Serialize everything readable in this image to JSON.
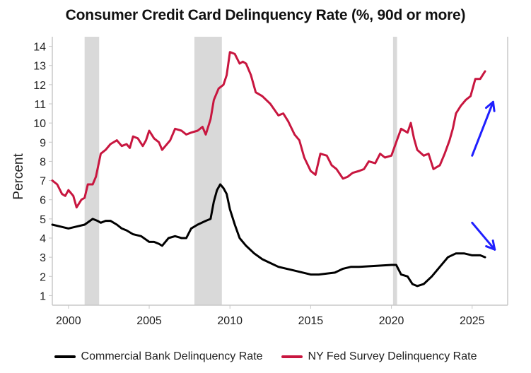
{
  "colors": {
    "commercial": "#000000",
    "nyfed": "#c8163f",
    "recession": "#d9d9d9",
    "arrow": "#1f1fff",
    "axis": "#c8c8c8"
  },
  "chart_data": {
    "type": "line",
    "title": "Consumer Credit Card Delinquency Rate (%, 90d or more)",
    "ylabel": "Percent",
    "xlabel": "",
    "xlim": [
      1999.0,
      2027.2
    ],
    "ylim": [
      0.5,
      14.5
    ],
    "x_ticks": [
      2000,
      2005,
      2010,
      2015,
      2020,
      2025
    ],
    "y_ticks": [
      1,
      2,
      3,
      4,
      5,
      6,
      7,
      8,
      9,
      10,
      11,
      12,
      13,
      14
    ],
    "grid": false,
    "legend_position": "bottom",
    "recessions": [
      [
        2001.0,
        2001.9
      ],
      [
        2007.8,
        2009.5
      ],
      [
        2020.1,
        2020.35
      ]
    ],
    "series": [
      {
        "name": "Commercial Bank Delinquency Rate",
        "color_key": "commercial",
        "x": [
          1999.0,
          1999.5,
          2000.0,
          2000.5,
          2001.0,
          2001.5,
          2001.8,
          2002.0,
          2002.3,
          2002.6,
          2003.0,
          2003.3,
          2003.6,
          2004.0,
          2004.5,
          2005.0,
          2005.3,
          2005.6,
          2005.8,
          2006.2,
          2006.6,
          2007.0,
          2007.3,
          2007.6,
          2008.0,
          2008.5,
          2008.8,
          2009.0,
          2009.2,
          2009.4,
          2009.6,
          2009.8,
          2010.0,
          2010.3,
          2010.6,
          2011.0,
          2011.5,
          2012.0,
          2013.0,
          2014.0,
          2015.0,
          2015.5,
          2016.0,
          2016.5,
          2017.0,
          2017.5,
          2018.0,
          2019.0,
          2020.0,
          2020.3,
          2020.6,
          2021.0,
          2021.3,
          2021.6,
          2022.0,
          2022.5,
          2023.0,
          2023.5,
          2024.0,
          2024.5,
          2025.0,
          2025.5,
          2025.8
        ],
        "values": [
          4.7,
          4.6,
          4.5,
          4.6,
          4.7,
          5.0,
          4.9,
          4.8,
          4.9,
          4.9,
          4.7,
          4.5,
          4.4,
          4.2,
          4.1,
          3.8,
          3.8,
          3.7,
          3.6,
          4.0,
          4.1,
          4.0,
          4.0,
          4.5,
          4.7,
          4.9,
          5.0,
          5.9,
          6.5,
          6.8,
          6.6,
          6.3,
          5.5,
          4.7,
          4.0,
          3.6,
          3.2,
          2.9,
          2.5,
          2.3,
          2.1,
          2.1,
          2.15,
          2.2,
          2.4,
          2.5,
          2.5,
          2.55,
          2.6,
          2.6,
          2.1,
          2.0,
          1.6,
          1.5,
          1.6,
          2.0,
          2.5,
          3.0,
          3.2,
          3.2,
          3.1,
          3.1,
          3.0
        ]
      },
      {
        "name": "NY Fed Survey Delinquency Rate",
        "color_key": "nyfed",
        "x": [
          1999.0,
          1999.3,
          1999.6,
          1999.8,
          2000.0,
          2000.3,
          2000.5,
          2000.8,
          2001.0,
          2001.2,
          2001.5,
          2001.7,
          2002.0,
          2002.3,
          2002.6,
          2003.0,
          2003.3,
          2003.6,
          2003.8,
          2004.0,
          2004.3,
          2004.6,
          2004.8,
          2005.0,
          2005.3,
          2005.6,
          2005.8,
          2006.0,
          2006.3,
          2006.6,
          2007.0,
          2007.3,
          2007.6,
          2008.0,
          2008.3,
          2008.5,
          2008.8,
          2009.0,
          2009.3,
          2009.6,
          2009.8,
          2010.0,
          2010.3,
          2010.6,
          2010.8,
          2011.0,
          2011.3,
          2011.6,
          2012.0,
          2012.5,
          2013.0,
          2013.3,
          2013.6,
          2014.0,
          2014.3,
          2014.6,
          2015.0,
          2015.3,
          2015.6,
          2016.0,
          2016.3,
          2016.6,
          2017.0,
          2017.3,
          2017.6,
          2018.0,
          2018.3,
          2018.6,
          2019.0,
          2019.3,
          2019.6,
          2020.0,
          2020.3,
          2020.6,
          2021.0,
          2021.2,
          2021.4,
          2021.6,
          2022.0,
          2022.3,
          2022.6,
          2023.0,
          2023.3,
          2023.6,
          2023.8,
          2024.0,
          2024.3,
          2024.6,
          2024.9,
          2025.2,
          2025.5,
          2025.8
        ],
        "values": [
          7.0,
          6.8,
          6.3,
          6.2,
          6.5,
          6.2,
          5.6,
          6.0,
          6.1,
          6.8,
          6.8,
          7.2,
          8.4,
          8.6,
          8.9,
          9.1,
          8.8,
          8.9,
          8.7,
          9.3,
          9.2,
          8.8,
          9.1,
          9.6,
          9.2,
          9.0,
          8.6,
          8.8,
          9.1,
          9.7,
          9.6,
          9.4,
          9.5,
          9.6,
          9.8,
          9.4,
          10.2,
          11.2,
          11.8,
          12.0,
          12.5,
          13.7,
          13.6,
          13.1,
          13.2,
          13.1,
          12.5,
          11.6,
          11.4,
          11.0,
          10.4,
          10.5,
          10.1,
          9.4,
          9.1,
          8.2,
          7.5,
          7.3,
          8.4,
          8.3,
          7.8,
          7.6,
          7.1,
          7.2,
          7.4,
          7.5,
          7.6,
          8.0,
          7.9,
          8.4,
          8.2,
          8.3,
          9.0,
          9.7,
          9.5,
          10.0,
          9.2,
          8.6,
          8.3,
          8.4,
          7.6,
          7.8,
          8.4,
          9.1,
          9.7,
          10.5,
          10.9,
          11.2,
          11.4,
          12.3,
          12.3,
          12.7
        ]
      }
    ],
    "annotations": [
      {
        "type": "arrow",
        "color_key": "arrow",
        "from": [
          2025.0,
          8.3
        ],
        "to": [
          2026.3,
          11.1
        ]
      },
      {
        "type": "arrow",
        "color_key": "arrow",
        "from": [
          2025.0,
          4.8
        ],
        "to": [
          2026.4,
          3.4
        ]
      }
    ]
  }
}
